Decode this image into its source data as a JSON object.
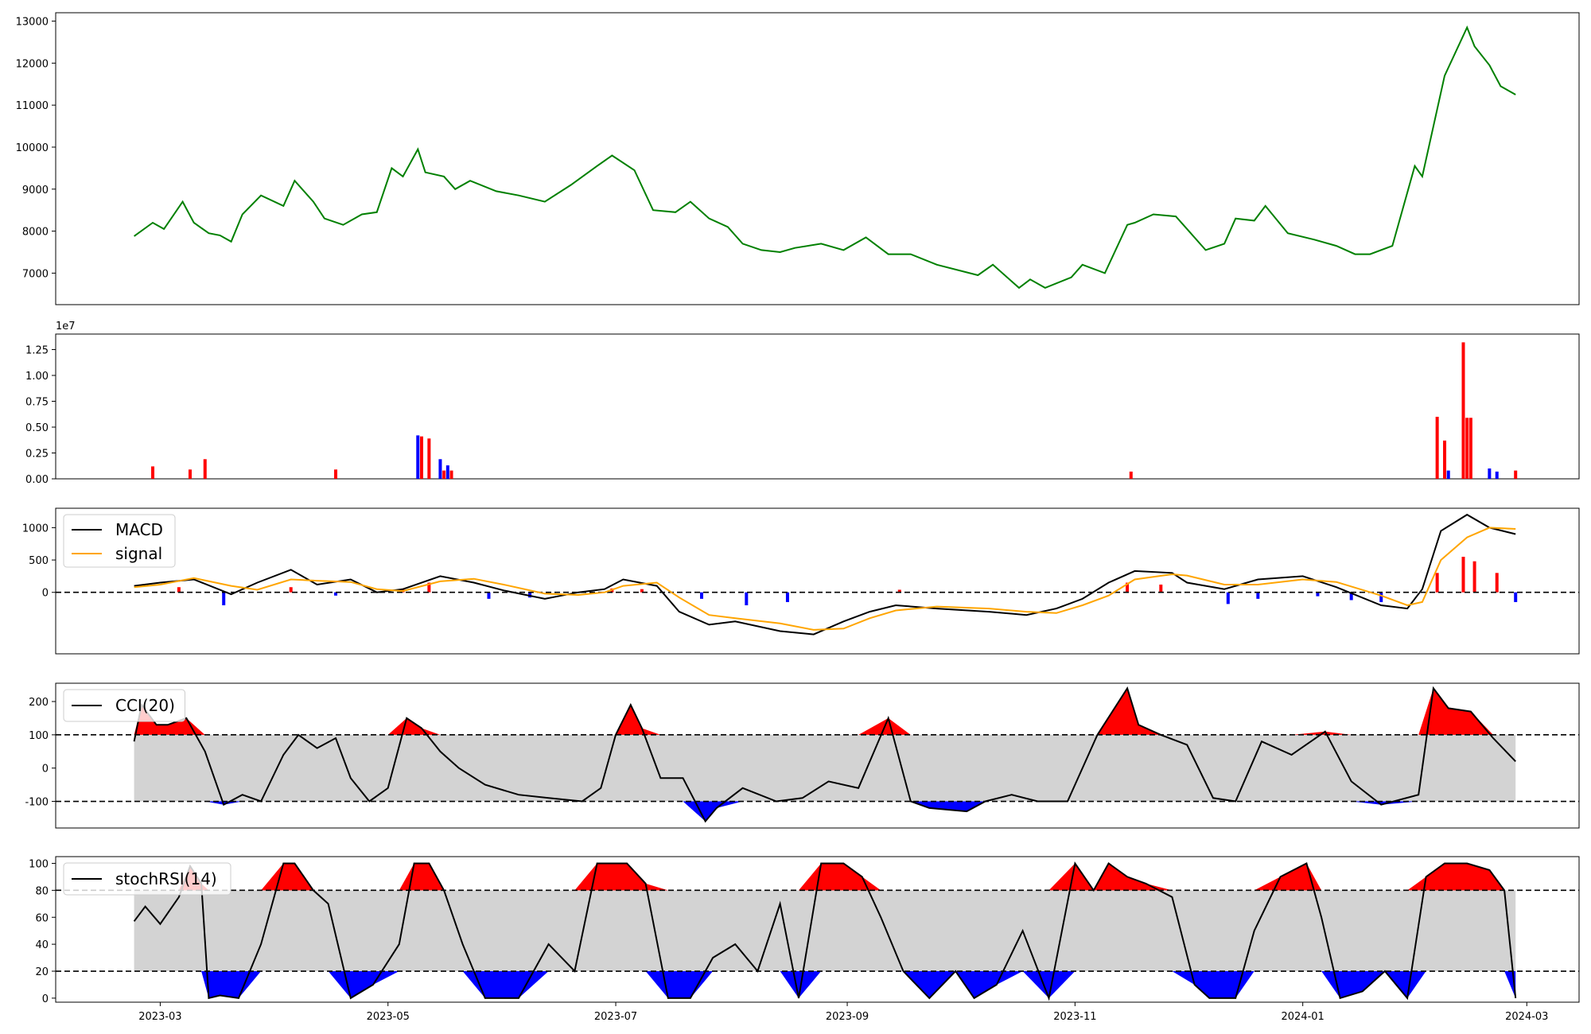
{
  "chart_data": [
    {
      "type": "line",
      "panel": "price",
      "title": "",
      "xlabel": "",
      "ylabel": "",
      "ylim": [
        6250,
        13200
      ],
      "yticks": [
        7000,
        8000,
        9000,
        10000,
        11000,
        12000,
        13000
      ],
      "color": "#008000",
      "x": [
        "2023-02-22",
        "2023-02-27",
        "2023-03-02",
        "2023-03-07",
        "2023-03-10",
        "2023-03-14",
        "2023-03-17",
        "2023-03-20",
        "2023-03-23",
        "2023-03-28",
        "2023-04-03",
        "2023-04-06",
        "2023-04-11",
        "2023-04-14",
        "2023-04-19",
        "2023-04-24",
        "2023-04-28",
        "2023-05-02",
        "2023-05-05",
        "2023-05-09",
        "2023-05-11",
        "2023-05-16",
        "2023-05-19",
        "2023-05-23",
        "2023-05-30",
        "2023-06-05",
        "2023-06-12",
        "2023-06-19",
        "2023-06-26",
        "2023-06-30",
        "2023-07-06",
        "2023-07-11",
        "2023-07-17",
        "2023-07-21",
        "2023-07-26",
        "2023-07-31",
        "2023-08-04",
        "2023-08-09",
        "2023-08-14",
        "2023-08-18",
        "2023-08-25",
        "2023-08-31",
        "2023-09-06",
        "2023-09-12",
        "2023-09-18",
        "2023-09-25",
        "2023-10-06",
        "2023-10-10",
        "2023-10-17",
        "2023-10-20",
        "2023-10-24",
        "2023-10-31",
        "2023-11-03",
        "2023-11-09",
        "2023-11-15",
        "2023-11-17",
        "2023-11-22",
        "2023-11-28",
        "2023-12-01",
        "2023-12-06",
        "2023-12-11",
        "2023-12-14",
        "2023-12-19",
        "2023-12-22",
        "2023-12-28",
        "2024-01-04",
        "2024-01-10",
        "2024-01-15",
        "2024-01-19",
        "2024-01-25",
        "2024-01-31",
        "2024-02-02",
        "2024-02-08",
        "2024-02-14",
        "2024-02-16",
        "2024-02-20",
        "2024-02-23",
        "2024-02-27"
      ],
      "y": [
        7880,
        8200,
        8050,
        8700,
        8200,
        7950,
        7900,
        7750,
        8400,
        8850,
        8600,
        9200,
        8700,
        8300,
        8150,
        8400,
        8450,
        9500,
        9300,
        9950,
        9400,
        9300,
        9000,
        9200,
        8950,
        8850,
        8700,
        9100,
        9550,
        9800,
        9450,
        8500,
        8450,
        8700,
        8300,
        8100,
        7700,
        7550,
        7500,
        7600,
        7700,
        7550,
        7850,
        7450,
        7450,
        7200,
        6950,
        7200,
        6650,
        6850,
        6650,
        6900,
        7200,
        7000,
        8150,
        8200,
        8400,
        8350,
        8050,
        7550,
        7700,
        8300,
        8250,
        8600,
        7950,
        7800,
        7650,
        7450,
        7450,
        7650,
        9550,
        9300,
        11700,
        12850,
        12400,
        11950,
        11450,
        11250
      ]
    },
    {
      "type": "bar",
      "panel": "volume",
      "title": "",
      "scale_label": "1e7",
      "ylim": [
        0,
        1.4
      ],
      "yticks": [
        "0.00",
        "0.25",
        "0.50",
        "0.75",
        "1.00",
        "1.25"
      ],
      "colors": {
        "up": "#ff0000",
        "down": "#0000ff"
      },
      "x": [
        "2023-02-27",
        "2023-03-09",
        "2023-03-13",
        "2023-04-17",
        "2023-05-09",
        "2023-05-10",
        "2023-05-12",
        "2023-05-15",
        "2023-05-16",
        "2023-05-17",
        "2023-05-18",
        "2023-11-16",
        "2024-02-06",
        "2024-02-08",
        "2024-02-09",
        "2024-02-13",
        "2024-02-14",
        "2024-02-15",
        "2024-02-20",
        "2024-02-22",
        "2024-02-27"
      ],
      "values": [
        0.12,
        0.09,
        0.19,
        0.09,
        0.42,
        0.41,
        0.39,
        0.19,
        0.08,
        0.13,
        0.08,
        0.07,
        0.6,
        0.37,
        0.08,
        1.32,
        0.59,
        0.59,
        0.1,
        0.07,
        0.08
      ],
      "directions": [
        "up",
        "up",
        "up",
        "up",
        "down",
        "up",
        "up",
        "down",
        "up",
        "down",
        "up",
        "up",
        "up",
        "up",
        "down",
        "up",
        "up",
        "up",
        "down",
        "down",
        "up"
      ]
    },
    {
      "type": "line",
      "panel": "macd",
      "title": "",
      "ylim": [
        -950,
        1300
      ],
      "yticks": [
        0,
        500,
        1000
      ],
      "zero_line": "dashed",
      "legend": {
        "location": "top-left"
      },
      "series": [
        {
          "name": "MACD",
          "color": "#000000",
          "x": [
            "2023-02-22",
            "2023-03-01",
            "2023-03-10",
            "2023-03-20",
            "2023-03-27",
            "2023-04-05",
            "2023-04-12",
            "2023-04-21",
            "2023-04-28",
            "2023-05-05",
            "2023-05-15",
            "2023-05-24",
            "2023-06-01",
            "2023-06-12",
            "2023-06-21",
            "2023-06-28",
            "2023-07-03",
            "2023-07-12",
            "2023-07-18",
            "2023-07-26",
            "2023-08-02",
            "2023-08-14",
            "2023-08-23",
            "2023-08-31",
            "2023-09-07",
            "2023-09-14",
            "2023-09-25",
            "2023-10-09",
            "2023-10-19",
            "2023-10-27",
            "2023-11-03",
            "2023-11-10",
            "2023-11-17",
            "2023-11-27",
            "2023-12-01",
            "2023-12-11",
            "2023-12-20",
            "2024-01-01",
            "2024-01-10",
            "2024-01-22",
            "2024-01-29",
            "2024-02-02",
            "2024-02-07",
            "2024-02-14",
            "2024-02-20",
            "2024-02-27"
          ],
          "values": [
            100,
            150,
            200,
            -30,
            150,
            350,
            120,
            200,
            0,
            50,
            250,
            150,
            30,
            -100,
            0,
            50,
            200,
            100,
            -300,
            -500,
            -450,
            -600,
            -650,
            -450,
            -300,
            -200,
            -250,
            -300,
            -350,
            -250,
            -100,
            150,
            330,
            300,
            150,
            50,
            200,
            250,
            80,
            -200,
            -250,
            50,
            950,
            1200,
            1000,
            900
          ]
        },
        {
          "name": "signal",
          "color": "#ffa500",
          "x": [
            "2023-02-22",
            "2023-03-01",
            "2023-03-10",
            "2023-03-20",
            "2023-03-27",
            "2023-04-05",
            "2023-04-12",
            "2023-04-21",
            "2023-04-28",
            "2023-05-05",
            "2023-05-15",
            "2023-05-24",
            "2023-06-01",
            "2023-06-12",
            "2023-06-21",
            "2023-06-28",
            "2023-07-03",
            "2023-07-12",
            "2023-07-18",
            "2023-07-26",
            "2023-08-02",
            "2023-08-14",
            "2023-08-23",
            "2023-08-31",
            "2023-09-07",
            "2023-09-14",
            "2023-09-25",
            "2023-10-09",
            "2023-10-19",
            "2023-10-27",
            "2023-11-03",
            "2023-11-10",
            "2023-11-17",
            "2023-11-27",
            "2023-12-01",
            "2023-12-11",
            "2023-12-20",
            "2024-01-01",
            "2024-01-10",
            "2024-01-22",
            "2024-01-29",
            "2024-02-02",
            "2024-02-07",
            "2024-02-14",
            "2024-02-20",
            "2024-02-27"
          ],
          "values": [
            80,
            120,
            220,
            100,
            40,
            200,
            180,
            160,
            50,
            20,
            170,
            210,
            120,
            -20,
            -40,
            0,
            100,
            150,
            -80,
            -350,
            -400,
            -480,
            -580,
            -560,
            -400,
            -280,
            -220,
            -250,
            -300,
            -320,
            -200,
            -50,
            200,
            280,
            260,
            120,
            120,
            200,
            160,
            -50,
            -200,
            -150,
            500,
            850,
            1000,
            980
          ]
        }
      ],
      "histogram": {
        "x": [
          "2023-03-06",
          "2023-03-18",
          "2023-04-05",
          "2023-04-17",
          "2023-05-05",
          "2023-05-12",
          "2023-05-28",
          "2023-06-08",
          "2023-06-30",
          "2023-07-08",
          "2023-07-24",
          "2023-08-05",
          "2023-08-16",
          "2023-09-15",
          "2023-11-15",
          "2023-11-24",
          "2023-12-12",
          "2023-12-20",
          "2024-01-05",
          "2024-01-14",
          "2024-01-22",
          "2024-02-06",
          "2024-02-13",
          "2024-02-16",
          "2024-02-22",
          "2024-02-27"
        ],
        "values": [
          80,
          -200,
          80,
          -50,
          60,
          150,
          -100,
          -80,
          60,
          50,
          -100,
          -200,
          -150,
          40,
          150,
          120,
          -180,
          -100,
          -60,
          -120,
          -150,
          300,
          550,
          480,
          300,
          -150
        ]
      }
    },
    {
      "type": "line",
      "panel": "cci",
      "title": "",
      "ylim": [
        -180,
        255
      ],
      "yticks": [
        -100,
        0,
        100,
        200
      ],
      "bands": [
        -100,
        100
      ],
      "legend": {
        "location": "top-left"
      },
      "series": [
        {
          "name": "CCI(20)",
          "color": "#000000",
          "x": [
            "2023-02-22",
            "2023-02-24",
            "2023-02-28",
            "2023-03-03",
            "2023-03-08",
            "2023-03-13",
            "2023-03-18",
            "2023-03-23",
            "2023-03-28",
            "2023-04-03",
            "2023-04-07",
            "2023-04-12",
            "2023-04-17",
            "2023-04-21",
            "2023-04-26",
            "2023-05-01",
            "2023-05-06",
            "2023-05-10",
            "2023-05-15",
            "2023-05-20",
            "2023-05-27",
            "2023-06-05",
            "2023-06-13",
            "2023-06-22",
            "2023-06-27",
            "2023-07-01",
            "2023-07-05",
            "2023-07-08",
            "2023-07-13",
            "2023-07-19",
            "2023-07-25",
            "2023-07-28",
            "2023-08-04",
            "2023-08-13",
            "2023-08-20",
            "2023-08-27",
            "2023-09-04",
            "2023-09-12",
            "2023-09-18",
            "2023-09-23",
            "2023-10-03",
            "2023-10-08",
            "2023-10-15",
            "2023-10-22",
            "2023-10-30",
            "2023-11-07",
            "2023-11-15",
            "2023-11-18",
            "2023-11-24",
            "2023-12-01",
            "2023-12-08",
            "2023-12-14",
            "2023-12-21",
            "2023-12-29",
            "2024-01-07",
            "2024-01-14",
            "2024-01-22",
            "2024-02-01",
            "2024-02-05",
            "2024-02-09",
            "2024-02-15",
            "2024-02-21",
            "2024-02-27"
          ],
          "values": [
            80,
            190,
            130,
            130,
            150,
            50,
            -110,
            -80,
            -100,
            40,
            100,
            60,
            90,
            -30,
            -100,
            -60,
            150,
            120,
            50,
            0,
            -50,
            -80,
            -90,
            -100,
            -60,
            100,
            190,
            120,
            -30,
            -30,
            -160,
            -120,
            -60,
            -100,
            -90,
            -40,
            -60,
            150,
            -100,
            -120,
            -130,
            -100,
            -80,
            -100,
            -100,
            100,
            240,
            130,
            100,
            70,
            -90,
            -100,
            80,
            40,
            110,
            -40,
            -110,
            -80,
            240,
            180,
            170,
            90,
            20
          ]
        }
      ],
      "fill_colors": {
        "above": "#ff0000",
        "below": "#0000ff",
        "band": "#d3d3d3"
      }
    },
    {
      "type": "line",
      "panel": "stochrsi",
      "title": "",
      "ylim": [
        -3,
        105
      ],
      "yticks": [
        0,
        20,
        40,
        60,
        80,
        100
      ],
      "bands": [
        20,
        80
      ],
      "legend": {
        "location": "top-left"
      },
      "series": [
        {
          "name": "stochRSI(14)",
          "color": "#000000",
          "x": [
            "2023-02-22",
            "2023-02-25",
            "2023-03-01",
            "2023-03-06",
            "2023-03-09",
            "2023-03-12",
            "2023-03-14",
            "2023-03-17",
            "2023-03-22",
            "2023-03-28",
            "2023-04-03",
            "2023-04-06",
            "2023-04-11",
            "2023-04-15",
            "2023-04-21",
            "2023-04-27",
            "2023-05-04",
            "2023-05-08",
            "2023-05-12",
            "2023-05-16",
            "2023-05-21",
            "2023-05-27",
            "2023-06-05",
            "2023-06-13",
            "2023-06-20",
            "2023-06-26",
            "2023-06-29",
            "2023-07-04",
            "2023-07-09",
            "2023-07-15",
            "2023-07-21",
            "2023-07-27",
            "2023-08-02",
            "2023-08-08",
            "2023-08-14",
            "2023-08-19",
            "2023-08-25",
            "2023-08-31",
            "2023-09-05",
            "2023-09-10",
            "2023-09-16",
            "2023-09-23",
            "2023-09-30",
            "2023-10-05",
            "2023-10-11",
            "2023-10-18",
            "2023-10-25",
            "2023-11-01",
            "2023-11-06",
            "2023-11-10",
            "2023-11-15",
            "2023-11-20",
            "2023-11-27",
            "2023-12-03",
            "2023-12-07",
            "2023-12-14",
            "2023-12-19",
            "2023-12-26",
            "2024-01-02",
            "2024-01-06",
            "2024-01-11",
            "2024-01-17",
            "2024-01-23",
            "2024-01-29",
            "2024-02-03",
            "2024-02-08",
            "2024-02-14",
            "2024-02-20",
            "2024-02-24",
            "2024-02-27"
          ],
          "values": [
            57,
            68,
            55,
            75,
            98,
            85,
            0,
            2,
            0,
            40,
            100,
            100,
            80,
            70,
            0,
            10,
            40,
            100,
            100,
            80,
            40,
            0,
            0,
            40,
            20,
            100,
            100,
            100,
            85,
            0,
            0,
            30,
            40,
            20,
            70,
            0,
            100,
            100,
            90,
            60,
            20,
            0,
            20,
            0,
            10,
            50,
            0,
            100,
            80,
            100,
            90,
            85,
            75,
            10,
            0,
            0,
            50,
            90,
            100,
            60,
            0,
            5,
            20,
            0,
            90,
            100,
            100,
            95,
            80,
            0
          ]
        }
      ],
      "fill_colors": {
        "above": "#ff0000",
        "below": "#0000ff",
        "band": "#d3d3d3"
      }
    }
  ],
  "xaxis": {
    "range": [
      "2023-02-01",
      "2024-03-15"
    ],
    "ticks": [
      "2023-03-01",
      "2023-05-01",
      "2023-07-01",
      "2023-09-01",
      "2023-11-01",
      "2024-01-01",
      "2024-03-01"
    ],
    "tick_labels": [
      "2023-03",
      "2023-05",
      "2023-07",
      "2023-09",
      "2023-11",
      "2024-01",
      "2024-03"
    ]
  }
}
